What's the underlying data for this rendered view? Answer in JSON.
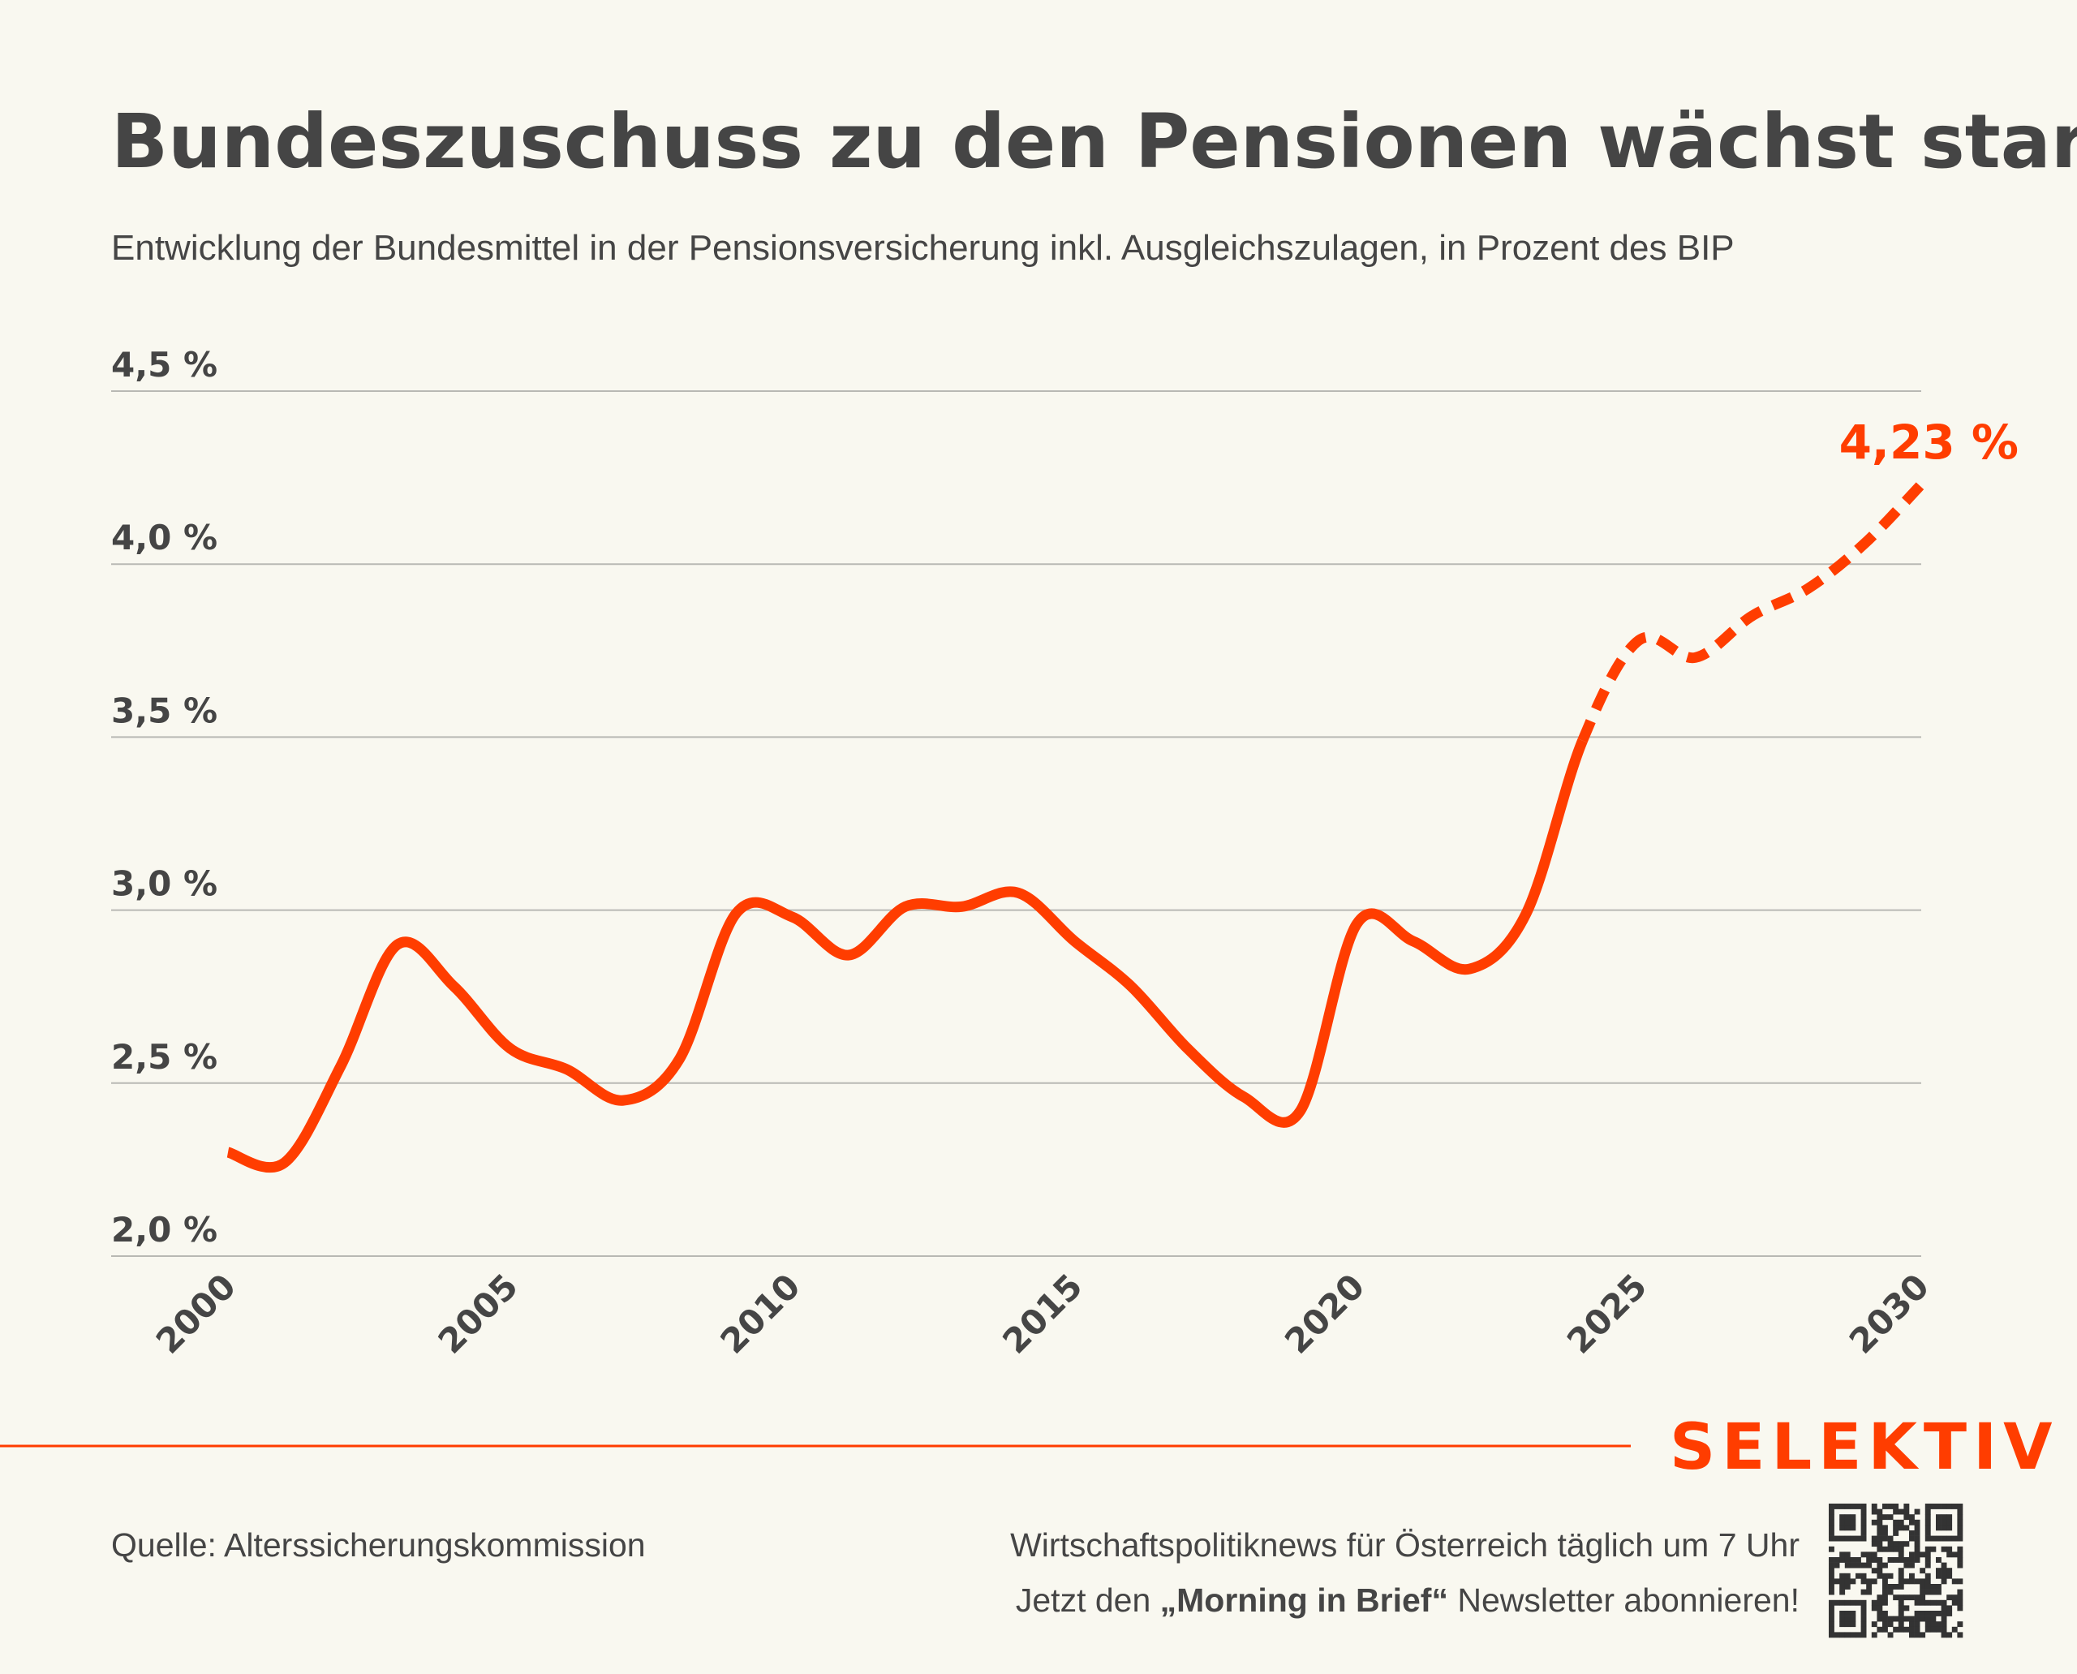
{
  "title": "Bundeszuschuss zu den Pensionen wächst stark",
  "subtitle": "Entwicklung der Bundesmittel in der Pensionsversicherung inkl. Ausgleichszulagen, in Prozent des BIP",
  "colors": {
    "accent": "#ff3d00",
    "text": "#454545",
    "background": "#f9f8f0",
    "grid": "#b9b9b4"
  },
  "chart_data": {
    "type": "line",
    "title": "Bundeszuschuss zu den Pensionen wächst stark",
    "subtitle": "Entwicklung der Bundesmittel in der Pensionsversicherung inkl. Ausgleichszulagen, in Prozent des BIP",
    "xlabel": "",
    "ylabel": "",
    "xlim": [
      2000,
      2030
    ],
    "ylim": [
      2.0,
      4.5
    ],
    "grid": true,
    "x_ticks": [
      2000,
      2005,
      2010,
      2015,
      2020,
      2025,
      2030
    ],
    "x_tick_labels": [
      "2000",
      "2005",
      "2010",
      "2015",
      "2020",
      "2025",
      "2030"
    ],
    "y_ticks": [
      2.0,
      2.5,
      3.0,
      3.5,
      4.0,
      4.5
    ],
    "y_tick_labels": [
      "2,0 %",
      "2,5 %",
      "3,0 %",
      "3,5 %",
      "4,0 %",
      "4,5 %"
    ],
    "x": [
      2000,
      2001,
      2002,
      2003,
      2004,
      2005,
      2006,
      2007,
      2008,
      2009,
      2010,
      2011,
      2012,
      2013,
      2014,
      2015,
      2016,
      2017,
      2018,
      2019,
      2020,
      2021,
      2022,
      2023,
      2024,
      2025,
      2026,
      2027,
      2028,
      2029,
      2030
    ],
    "values": [
      2.3,
      2.27,
      2.55,
      2.9,
      2.78,
      2.6,
      2.54,
      2.45,
      2.57,
      2.99,
      2.98,
      2.87,
      3.01,
      3.01,
      3.05,
      2.91,
      2.78,
      2.6,
      2.46,
      2.42,
      2.96,
      2.91,
      2.83,
      2.99,
      3.49,
      3.78,
      3.73,
      3.85,
      3.93,
      4.06,
      4.23
    ],
    "projection_from": 2024,
    "line_style": {
      "actual": "solid",
      "projection": "dashed"
    },
    "annotations": [
      {
        "x": 2030,
        "y": 4.23,
        "text": "4,23 %"
      }
    ]
  },
  "footer": {
    "source": "Quelle: Alterssicherungskommission",
    "logo": "SELEKTIV",
    "promo_line1": "Wirtschaftspolitiknews für Österreich täglich um 7 Uhr",
    "promo_line2_pre": "Jetzt den ",
    "promo_line2_bold": "„Morning in Brief“",
    "promo_line2_post": " Newsletter abonnieren!",
    "qr_icon": "qr-code-icon"
  }
}
